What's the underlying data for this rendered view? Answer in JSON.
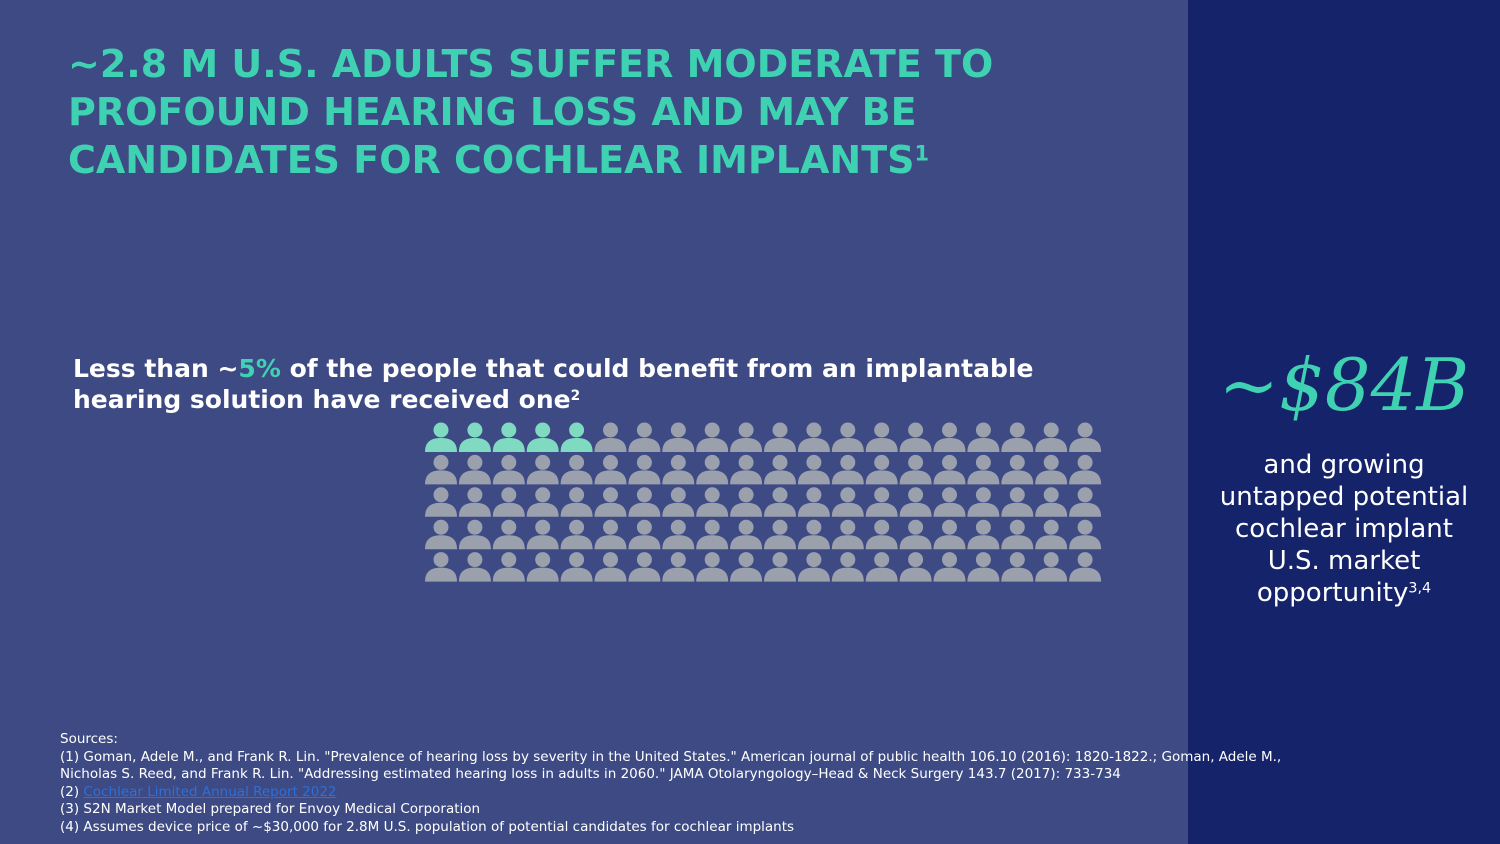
{
  "header": {
    "title_lines": [
      "~2.8 M U.S. adults suffer moderate to",
      "profound hearing loss and may be",
      "candidates for cochlear implants"
    ],
    "title_sup": "1"
  },
  "statement": {
    "prefix": "Less than ~",
    "highlight": "5%",
    "line1_rest": " of the people that could benefit from an implantable",
    "line2": "hearing solution have received one",
    "sup": "2"
  },
  "sidebar": {
    "figure": "~$84B",
    "lines": [
      "and growing",
      "untapped potential",
      "cochlear implant",
      "U.S. market",
      "opportunity"
    ],
    "sup": "3,4"
  },
  "sources": {
    "heading": "Sources:",
    "lines": [
      "(1) Goman, Adele M., and Frank R. Lin. \"Prevalence of hearing loss by severity in the United States.\" American journal of public health 106.10 (2016): 1820-1822.; Goman, Adele M.,",
      "Nicholas S. Reed, and Frank R. Lin. \"Addressing estimated hearing loss in adults in 2060.\" JAMA Otolaryngology–Head & Neck Surgery 143.7 (2017): 733-734"
    ],
    "link_prefix": "(2) ",
    "link": "Cochlear Limited Annual Report 2022",
    "more_lines": [
      "(3) S2N Market Model prepared for Envoy Medical Corporation",
      "(4) Assumes device price of ~$30,000 for 2.8M U.S. population of potential candidates for cochlear implants"
    ]
  }
}
